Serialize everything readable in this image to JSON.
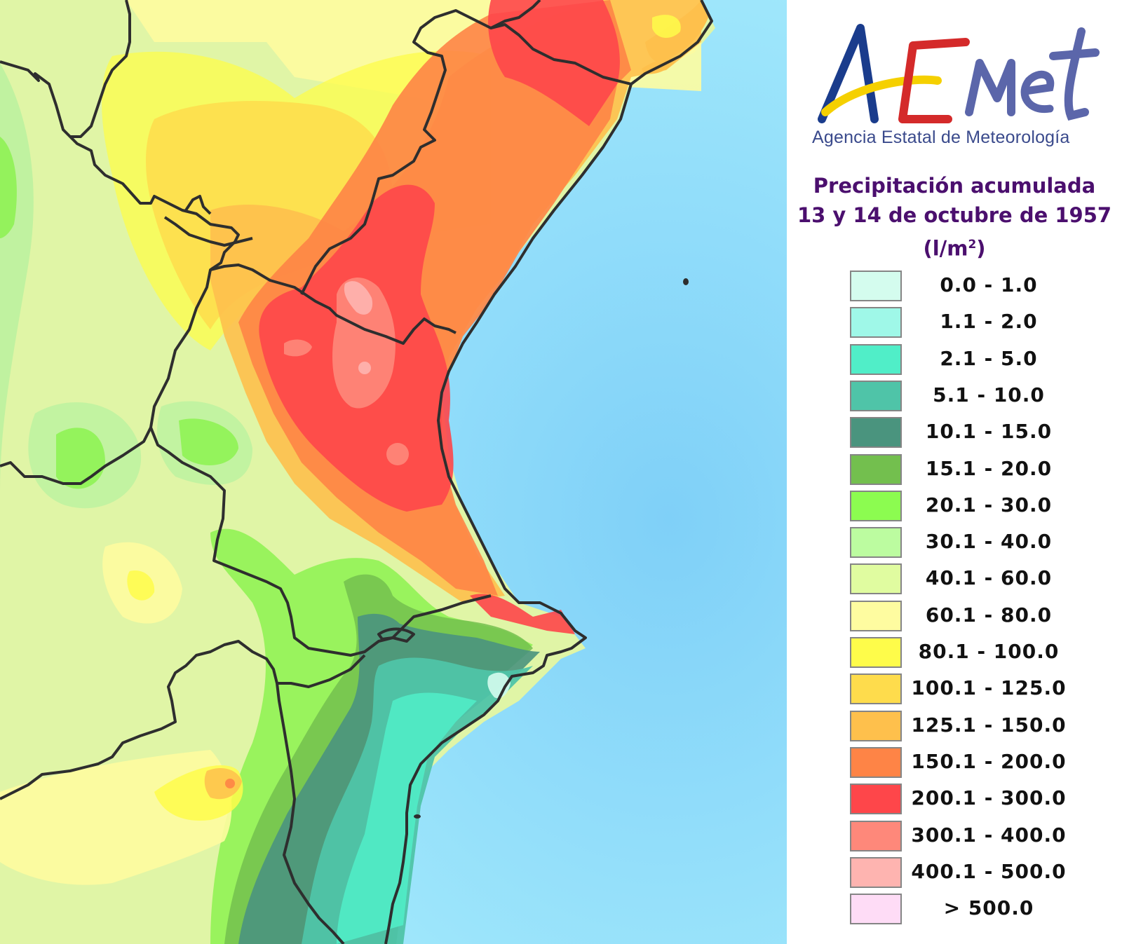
{
  "logo": {
    "wordmark": "AEMet",
    "letters": [
      {
        "char": "A",
        "color": "#1a3c8c"
      },
      {
        "char": "E",
        "color": "#d42a2a"
      },
      {
        "char": "Met",
        "color": "#5b66aa"
      }
    ],
    "swoosh_color": "#f5d000",
    "agency_name": "Agencia Estatal de Meteorología"
  },
  "title": {
    "line1": "Precipitación acumulada",
    "line2": "13 y 14 de octubre de 1957",
    "units_prefix": "(l/m",
    "units_sup": "2",
    "units_suffix": ")"
  },
  "legend": {
    "items": [
      {
        "label": "0.0 - 1.0",
        "color": "#d4fcee"
      },
      {
        "label": "1.1 - 2.0",
        "color": "#9ff8e8"
      },
      {
        "label": "2.1 - 5.0",
        "color": "#50eec8"
      },
      {
        "label": "5.1 - 10.0",
        "color": "#4fc4a8"
      },
      {
        "label": "10.1 - 15.0",
        "color": "#4a947e"
      },
      {
        "label": "15.1 - 20.0",
        "color": "#73bf4e"
      },
      {
        "label": "20.1 - 30.0",
        "color": "#8cfc50"
      },
      {
        "label": "30.1 - 40.0",
        "color": "#bcfca0"
      },
      {
        "label": "40.1 - 60.0",
        "color": "#e0fca0"
      },
      {
        "label": "60.1 - 80.0",
        "color": "#fefca0"
      },
      {
        "label": "80.1 - 100.0",
        "color": "#fefc4a"
      },
      {
        "label": "100.1 - 125.0",
        "color": "#fedc4c"
      },
      {
        "label": "125.1 - 150.0",
        "color": "#fec04c"
      },
      {
        "label": "150.1 - 200.0",
        "color": "#fe8446"
      },
      {
        "label": "200.1 - 300.0",
        "color": "#fe464a"
      },
      {
        "label": "300.1 - 400.0",
        "color": "#fe887a"
      },
      {
        "label": "400.1 - 500.0",
        "color": "#feb4b0"
      },
      {
        "label": "> 500.0",
        "color": "#fedcf6"
      }
    ]
  },
  "map": {
    "sea_color": "#a6ecfc",
    "sea_deep_color": "#7fd0f8",
    "border_color": "#2e2e2e"
  }
}
